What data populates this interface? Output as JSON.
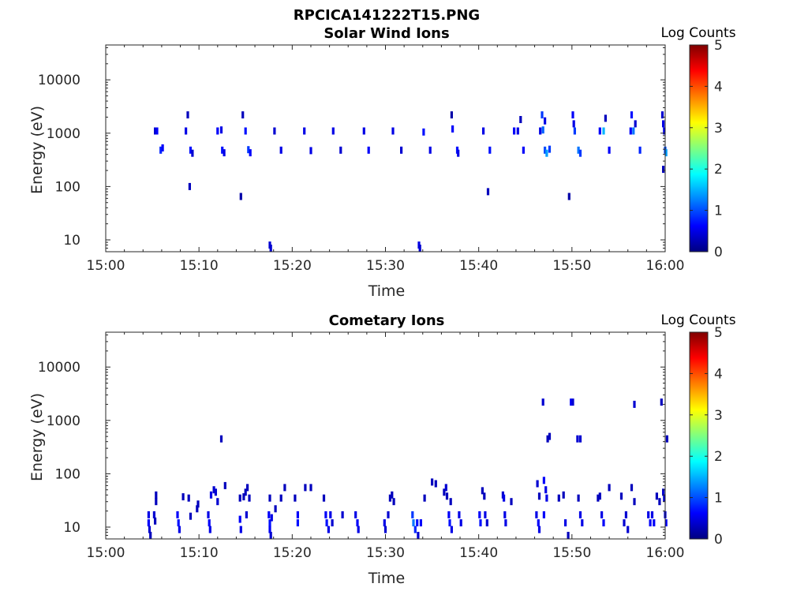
{
  "figure_title": "RPCICA141222T15.PNG",
  "chart_data": [
    {
      "type": "heatmap",
      "title": "Solar Wind Ions",
      "xlabel": "Time",
      "ylabel": "Energy (eV)",
      "yscale": "log",
      "ylim": [
        6,
        45000
      ],
      "xlim": [
        "15:00",
        "16:00"
      ],
      "x_ticks": [
        "15:00",
        "15:10",
        "15:20",
        "15:30",
        "15:40",
        "15:50",
        "16:00"
      ],
      "y_ticks": [
        "10",
        "100",
        "1000",
        "10000"
      ],
      "grid": false,
      "colorbar": {
        "label": "Log Counts",
        "min": 0,
        "max": 5,
        "ticks": [
          "0",
          "1",
          "2",
          "3",
          "4",
          "5"
        ],
        "colormap": "jet"
      },
      "points": [
        [
          5.3,
          1100,
          0.4
        ],
        [
          5.5,
          1100,
          0.6
        ],
        [
          5.9,
          480,
          0.8
        ],
        [
          6.1,
          530,
          0.6
        ],
        [
          8.6,
          1100,
          0.5
        ],
        [
          8.8,
          2200,
          0.3
        ],
        [
          9.0,
          100,
          0.3
        ],
        [
          9.1,
          480,
          0.7
        ],
        [
          9.3,
          420,
          0.4
        ],
        [
          12.0,
          1100,
          0.6
        ],
        [
          12.4,
          1150,
          0.5
        ],
        [
          12.5,
          480,
          0.7
        ],
        [
          12.7,
          430,
          0.5
        ],
        [
          14.7,
          2200,
          0.3
        ],
        [
          15.0,
          1100,
          0.7
        ],
        [
          15.3,
          490,
          0.9
        ],
        [
          15.5,
          430,
          0.6
        ],
        [
          14.5,
          65,
          0.2
        ],
        [
          18.1,
          1100,
          0.4
        ],
        [
          18.8,
          480,
          0.5
        ],
        [
          21.3,
          1100,
          0.5
        ],
        [
          22.0,
          470,
          0.5
        ],
        [
          24.4,
          1100,
          0.5
        ],
        [
          25.2,
          480,
          0.4
        ],
        [
          27.7,
          1100,
          0.5
        ],
        [
          28.2,
          480,
          0.6
        ],
        [
          30.8,
          1100,
          0.5
        ],
        [
          31.7,
          480,
          0.4
        ],
        [
          34.1,
          1050,
          0.7
        ],
        [
          34.8,
          480,
          0.5
        ],
        [
          37.2,
          1200,
          0.6
        ],
        [
          37.1,
          2200,
          0.2
        ],
        [
          37.7,
          480,
          0.7
        ],
        [
          37.8,
          420,
          0.5
        ],
        [
          40.5,
          1100,
          0.5
        ],
        [
          41.0,
          80,
          0.3
        ],
        [
          41.2,
          480,
          0.7
        ],
        [
          43.8,
          1100,
          0.6
        ],
        [
          44.2,
          1100,
          0.5
        ],
        [
          44.5,
          1800,
          0.3
        ],
        [
          44.8,
          480,
          0.6
        ],
        [
          46.6,
          1100,
          0.5
        ],
        [
          46.8,
          2200,
          0.9
        ],
        [
          47.1,
          1700,
          0.5
        ],
        [
          46.9,
          1150,
          1.1
        ],
        [
          47.1,
          480,
          1.0
        ],
        [
          47.3,
          420,
          1.4
        ],
        [
          47.6,
          500,
          0.9
        ],
        [
          49.7,
          65,
          0.2
        ],
        [
          50.1,
          2200,
          0.6
        ],
        [
          50.2,
          1500,
          0.5
        ],
        [
          50.3,
          1100,
          0.9
        ],
        [
          50.7,
          480,
          1.2
        ],
        [
          50.9,
          420,
          0.9
        ],
        [
          53.0,
          1100,
          0.6
        ],
        [
          53.4,
          1100,
          1.5
        ],
        [
          53.6,
          1900,
          0.3
        ],
        [
          54.0,
          480,
          0.6
        ],
        [
          56.3,
          1100,
          0.6
        ],
        [
          56.4,
          2200,
          0.7
        ],
        [
          56.6,
          1100,
          1.2
        ],
        [
          56.8,
          1500,
          0.4
        ],
        [
          57.3,
          480,
          0.8
        ],
        [
          59.7,
          2200,
          0.4
        ],
        [
          59.8,
          1500,
          0.5
        ],
        [
          59.9,
          1100,
          0.5
        ],
        [
          60.0,
          480,
          1.0
        ],
        [
          60.1,
          430,
          1.4
        ],
        [
          59.8,
          210,
          0.3
        ],
        [
          17.6,
          8,
          0.4
        ],
        [
          17.7,
          7,
          0.4
        ],
        [
          33.6,
          8,
          0.5
        ],
        [
          33.7,
          7,
          0.4
        ]
      ]
    },
    {
      "type": "heatmap",
      "title": "Cometary Ions",
      "xlabel": "Time",
      "ylabel": "Energy (eV)",
      "yscale": "log",
      "ylim": [
        6,
        45000
      ],
      "xlim": [
        "15:00",
        "16:00"
      ],
      "x_ticks": [
        "15:00",
        "15:10",
        "15:20",
        "15:30",
        "15:40",
        "15:50",
        "16:00"
      ],
      "y_ticks": [
        "10",
        "100",
        "1000",
        "10000"
      ],
      "grid": false,
      "colorbar": {
        "label": "Log Counts",
        "min": 0,
        "max": 5,
        "ticks": [
          "0",
          "1",
          "2",
          "3",
          "4",
          "5"
        ],
        "colormap": "jet"
      },
      "points": [
        [
          4.6,
          17,
          0.5
        ],
        [
          4.6,
          12,
          0.6
        ],
        [
          4.7,
          9,
          0.4
        ],
        [
          4.8,
          7,
          0.3
        ],
        [
          5.2,
          17,
          0.4
        ],
        [
          5.4,
          40,
          0.3
        ],
        [
          5.4,
          30,
          0.3
        ],
        [
          5.3,
          13,
          0.3
        ],
        [
          7.7,
          17,
          0.6
        ],
        [
          7.8,
          12,
          0.7
        ],
        [
          7.9,
          9,
          0.5
        ],
        [
          8.3,
          37,
          0.3
        ],
        [
          8.9,
          35,
          0.3
        ],
        [
          9.1,
          16,
          0.3
        ],
        [
          9.9,
          27,
          0.3
        ],
        [
          9.8,
          22,
          0.3
        ],
        [
          11.0,
          17,
          0.5
        ],
        [
          11.1,
          12,
          0.6
        ],
        [
          11.2,
          9,
          0.5
        ],
        [
          11.3,
          40,
          0.5
        ],
        [
          11.6,
          50,
          0.4
        ],
        [
          11.8,
          45,
          0.4
        ],
        [
          12.0,
          30,
          0.4
        ],
        [
          12.4,
          450,
          0.3
        ],
        [
          14.4,
          14,
          0.6
        ],
        [
          14.5,
          9,
          0.5
        ],
        [
          14.4,
          35,
          0.3
        ],
        [
          12.8,
          60,
          0.3
        ],
        [
          14.8,
          37,
          0.3
        ],
        [
          15.0,
          45,
          0.3
        ],
        [
          15.2,
          55,
          0.3
        ],
        [
          15.4,
          35,
          0.3
        ],
        [
          15.1,
          17,
          0.4
        ],
        [
          17.5,
          17,
          0.6
        ],
        [
          17.6,
          12,
          0.7
        ],
        [
          17.6,
          9,
          0.6
        ],
        [
          17.7,
          7,
          0.4
        ],
        [
          17.8,
          15,
          0.5
        ],
        [
          17.6,
          35,
          0.3
        ],
        [
          18.2,
          22,
          0.3
        ],
        [
          18.8,
          35,
          0.3
        ],
        [
          19.2,
          55,
          0.3
        ],
        [
          20.3,
          35,
          0.3
        ],
        [
          20.6,
          17,
          0.6
        ],
        [
          20.6,
          12,
          0.7
        ],
        [
          21.4,
          55,
          0.3
        ],
        [
          22.0,
          55,
          0.3
        ],
        [
          23.4,
          35,
          0.3
        ],
        [
          23.6,
          17,
          0.6
        ],
        [
          23.7,
          12,
          0.7
        ],
        [
          23.9,
          9,
          0.5
        ],
        [
          24.1,
          17,
          0.5
        ],
        [
          24.3,
          12,
          0.4
        ],
        [
          25.4,
          17,
          0.4
        ],
        [
          26.8,
          17,
          0.5
        ],
        [
          27.0,
          12,
          0.6
        ],
        [
          27.1,
          9,
          0.5
        ],
        [
          29.9,
          12,
          0.5
        ],
        [
          30.0,
          9,
          0.4
        ],
        [
          30.3,
          17,
          0.4
        ],
        [
          30.5,
          35,
          0.3
        ],
        [
          30.7,
          40,
          0.3
        ],
        [
          30.9,
          30,
          0.3
        ],
        [
          32.9,
          17,
          0.9
        ],
        [
          33.0,
          12,
          1.2
        ],
        [
          33.2,
          9,
          0.8
        ],
        [
          33.4,
          12,
          0.7
        ],
        [
          33.5,
          7,
          0.4
        ],
        [
          33.8,
          12,
          0.6
        ],
        [
          34.2,
          35,
          0.3
        ],
        [
          35.0,
          70,
          0.3
        ],
        [
          35.4,
          65,
          0.3
        ],
        [
          36.3,
          45,
          0.3
        ],
        [
          36.5,
          55,
          0.4
        ],
        [
          36.6,
          38,
          0.3
        ],
        [
          37.0,
          30,
          0.3
        ],
        [
          36.8,
          17,
          0.6
        ],
        [
          36.9,
          12,
          0.7
        ],
        [
          37.1,
          9,
          0.5
        ],
        [
          37.9,
          17,
          0.5
        ],
        [
          38.1,
          12,
          0.5
        ],
        [
          40.1,
          17,
          0.6
        ],
        [
          40.2,
          12,
          0.7
        ],
        [
          40.4,
          48,
          0.3
        ],
        [
          40.6,
          38,
          0.3
        ],
        [
          40.7,
          17,
          0.5
        ],
        [
          40.9,
          12,
          0.4
        ],
        [
          42.6,
          40,
          0.4
        ],
        [
          42.7,
          35,
          0.5
        ],
        [
          42.8,
          17,
          0.5
        ],
        [
          42.9,
          12,
          0.5
        ],
        [
          43.5,
          30,
          0.3
        ],
        [
          46.3,
          65,
          0.4
        ],
        [
          46.5,
          38,
          0.3
        ],
        [
          46.2,
          17,
          0.5
        ],
        [
          46.4,
          12,
          0.6
        ],
        [
          46.5,
          9,
          0.5
        ],
        [
          46.9,
          2200,
          0.4
        ],
        [
          47.0,
          75,
          0.6
        ],
        [
          47.2,
          50,
          0.5
        ],
        [
          47.3,
          35,
          0.5
        ],
        [
          47.0,
          17,
          0.6
        ],
        [
          47.4,
          450,
          0.3
        ],
        [
          47.6,
          500,
          0.3
        ],
        [
          49.1,
          40,
          0.3
        ],
        [
          48.6,
          35,
          0.3
        ],
        [
          49.3,
          12,
          0.5
        ],
        [
          49.6,
          7,
          0.3
        ],
        [
          49.9,
          2200,
          0.6
        ],
        [
          50.1,
          2200,
          0.4
        ],
        [
          50.6,
          450,
          0.4
        ],
        [
          50.9,
          450,
          0.4
        ],
        [
          50.7,
          35,
          0.3
        ],
        [
          50.9,
          17,
          0.5
        ],
        [
          51.1,
          12,
          0.5
        ],
        [
          52.8,
          35,
          0.3
        ],
        [
          53.0,
          38,
          0.3
        ],
        [
          53.2,
          17,
          0.5
        ],
        [
          53.4,
          12,
          0.6
        ],
        [
          54.0,
          55,
          0.3
        ],
        [
          55.3,
          38,
          0.3
        ],
        [
          55.6,
          12,
          0.4
        ],
        [
          55.8,
          17,
          0.4
        ],
        [
          56.0,
          9,
          0.4
        ],
        [
          56.7,
          2000,
          0.4
        ],
        [
          56.4,
          55,
          0.3
        ],
        [
          56.7,
          30,
          0.3
        ],
        [
          59.6,
          2200,
          0.3
        ],
        [
          58.2,
          17,
          0.5
        ],
        [
          58.4,
          12,
          0.6
        ],
        [
          58.6,
          17,
          0.5
        ],
        [
          58.8,
          12,
          0.6
        ],
        [
          59.1,
          38,
          0.3
        ],
        [
          59.4,
          30,
          0.3
        ],
        [
          59.8,
          45,
          0.4
        ],
        [
          59.9,
          35,
          0.4
        ],
        [
          60.0,
          17,
          0.5
        ],
        [
          60.1,
          12,
          0.6
        ],
        [
          60.2,
          450,
          0.3
        ]
      ]
    }
  ]
}
